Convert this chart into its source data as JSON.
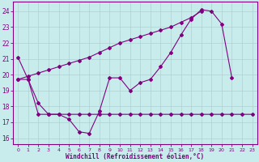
{
  "xlabel": "Windchill (Refroidissement éolien,°C)",
  "background_color": "#c8ecec",
  "grid_color": "#b0d0d0",
  "line_color": "#800080",
  "xlim": [
    -0.5,
    23.5
  ],
  "ylim": [
    15.6,
    24.6
  ],
  "yticks": [
    16,
    17,
    18,
    19,
    20,
    21,
    22,
    23,
    24
  ],
  "xticks": [
    0,
    1,
    2,
    3,
    4,
    5,
    6,
    7,
    8,
    9,
    10,
    11,
    12,
    13,
    14,
    15,
    16,
    17,
    18,
    19,
    20,
    21,
    22,
    23
  ],
  "xtick_labels": [
    "0",
    "1",
    "2",
    "3",
    "4",
    "5",
    "6",
    "7",
    "8",
    "9",
    "10",
    "11",
    "12",
    "13",
    "14",
    "15",
    "16",
    "17",
    "18",
    "19",
    "20",
    "21",
    "22",
    "23"
  ],
  "series1_y": [
    21.1,
    19.7,
    18.2,
    17.5,
    17.5,
    17.2,
    16.4,
    16.3,
    17.7,
    19.8,
    19.8,
    19.0,
    19.5,
    19.7,
    20.5,
    21.4,
    22.5,
    23.5,
    24.1,
    24.0,
    23.2,
    19.8,
    null,
    null
  ],
  "series2_y": [
    19.7,
    19.7,
    17.5,
    17.5,
    17.5,
    17.5,
    17.5,
    17.5,
    17.5,
    17.5,
    17.5,
    17.5,
    17.5,
    17.5,
    17.5,
    17.5,
    17.5,
    17.5,
    17.5,
    17.5,
    17.5,
    17.5,
    17.5,
    17.5
  ],
  "series3_y": [
    19.7,
    19.9,
    20.1,
    20.3,
    20.5,
    20.7,
    20.9,
    21.1,
    21.4,
    21.7,
    22.0,
    22.2,
    22.4,
    22.6,
    22.8,
    23.0,
    23.3,
    23.6,
    24.0,
    null,
    null,
    null,
    null,
    null
  ]
}
